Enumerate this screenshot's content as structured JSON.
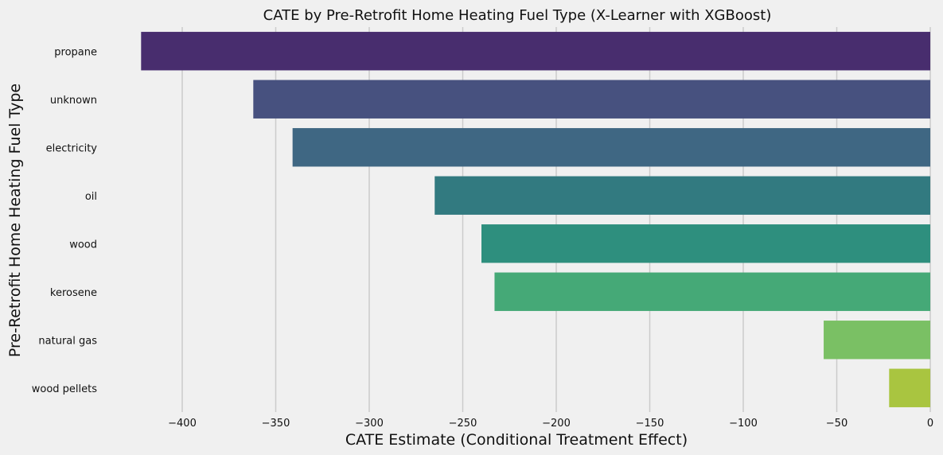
{
  "chart_data": {
    "type": "bar",
    "orientation": "horizontal",
    "title": "CATE by Pre-Retrofit Home Heating Fuel Type (X-Learner with XGBoost)",
    "xlabel": "CATE Estimate (Conditional Treatment Effect)",
    "ylabel": "Pre-Retrofit Home Heating Fuel Type",
    "categories": [
      "propane",
      "unknown",
      "electricity",
      "oil",
      "wood",
      "kerosene",
      "natural gas",
      "wood pellets"
    ],
    "values": [
      -422,
      -362,
      -341,
      -265,
      -240,
      -233,
      -57,
      -22
    ],
    "colors": [
      "#482d6e",
      "#47517f",
      "#3f6783",
      "#327a80",
      "#2e8f7e",
      "#45a977",
      "#7ac064",
      "#a9c540"
    ],
    "xlim": [
      -430,
      0
    ],
    "xticks": [
      -400,
      -350,
      -300,
      -250,
      -200,
      -150,
      -100,
      -50,
      0
    ],
    "xtick_labels": [
      "−400",
      "−350",
      "−300",
      "−250",
      "−200",
      "−150",
      "−100",
      "−50",
      "0"
    ],
    "grid": "vertical",
    "background": "#f0f0f0"
  }
}
